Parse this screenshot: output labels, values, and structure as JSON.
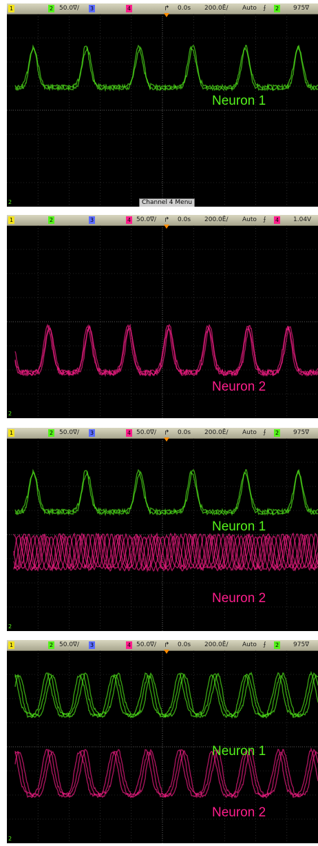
{
  "colors": {
    "ch1": "#f2e21e",
    "ch2": "#55f21c",
    "ch3": "#5b6cff",
    "ch4": "#ff1e8c",
    "grid": "#4a4a4a",
    "trigger": "#ff8c00"
  },
  "panels": [
    {
      "ch1_num": "1",
      "ch2_num": "2",
      "ch2_scale": "50.0∇/",
      "ch3_num": "3",
      "ch4_num": "4",
      "ch4_scale": "",
      "delay": "0.0s",
      "timebase": "200.0Ē/",
      "mode": "Auto",
      "trig_icon": "⨍",
      "trig_source": "2",
      "trig_level": "975∇",
      "labels": [
        "Neuron 1"
      ],
      "softkey": "Channel 4 Menu",
      "traces": [
        "neuron1"
      ]
    },
    {
      "ch1_num": "1",
      "ch2_num": "2",
      "ch2_scale": "",
      "ch3_num": "3",
      "ch4_num": "4",
      "ch4_scale": "50.0∇/",
      "delay": "0.0s",
      "timebase": "200.0Ē/",
      "mode": "Auto",
      "trig_icon": "⨍",
      "trig_source": "4",
      "trig_level": "1.04V",
      "labels": [
        "Neuron 2"
      ],
      "softkey": "",
      "traces": [
        "neuron2"
      ]
    },
    {
      "ch1_num": "1",
      "ch2_num": "2",
      "ch2_scale": "50.0∇/",
      "ch3_num": "3",
      "ch4_num": "4",
      "ch4_scale": "50.0∇/",
      "delay": "0.0s",
      "timebase": "200.0Ē/",
      "mode": "Auto",
      "trig_icon": "⨍",
      "trig_source": "2",
      "trig_level": "975∇",
      "labels": [
        "Neuron 1",
        "Neuron 2"
      ],
      "softkey": "",
      "traces": [
        "neuron1",
        "neuron2-fast"
      ]
    },
    {
      "ch1_num": "1",
      "ch2_num": "2",
      "ch2_scale": "50.0∇/",
      "ch3_num": "3",
      "ch4_num": "4",
      "ch4_scale": "50.0∇/",
      "delay": "0.0s",
      "timebase": "200.0Ē/",
      "mode": "Auto",
      "trig_icon": "⨍",
      "trig_source": "2",
      "trig_level": "975∇",
      "labels": [
        "Neuron 1",
        "Neuron 2"
      ],
      "softkey": "",
      "traces": [
        "neuron1-sync",
        "neuron2-sync"
      ]
    }
  ]
}
